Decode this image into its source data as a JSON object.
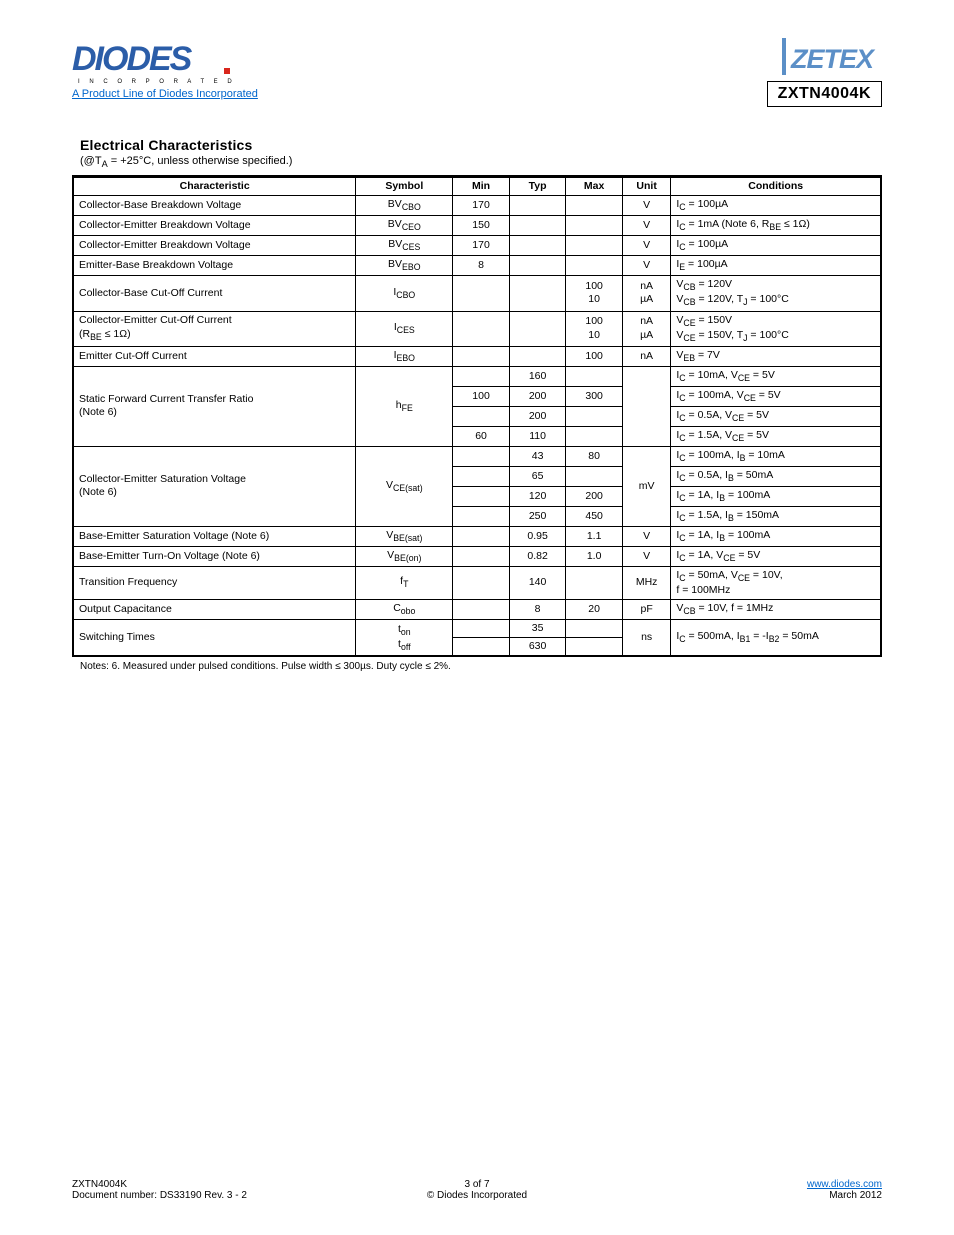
{
  "header": {
    "product_link": "A Product Line of Diodes Incorporated",
    "part_number": "ZXTN4004K"
  },
  "section": {
    "title": "Electrical Characteristics",
    "subtitle": "(@T<sub>A</sub> = +25°C, unless otherwise specified.)"
  },
  "table": {
    "headers": [
      "Characteristic",
      "Symbol",
      "Min",
      "Typ",
      "Max",
      "Unit",
      "Conditions"
    ],
    "rows": [
      {
        "p": "Collector-Base Breakdown Voltage",
        "s": "BV<sub>CBO</sub>",
        "min": "170",
        "typ": "",
        "max": "",
        "u": "V",
        "c": "I<sub>C</sub> = 100µA"
      },
      {
        "p": "Collector-Emitter Breakdown Voltage",
        "s": "BV<sub>CEO</sub>",
        "min": "150",
        "typ": "",
        "max": "",
        "u": "V",
        "c": "I<sub>C</sub> = 1mA (Note 6, R<sub>BE</sub> ≤ 1Ω)"
      },
      {
        "p": "Collector-Emitter Breakdown Voltage",
        "s": "BV<sub>CES</sub>",
        "min": "170",
        "typ": "",
        "max": "",
        "u": "V",
        "c": "I<sub>C</sub> = 100µA"
      },
      {
        "p": "Emitter-Base Breakdown Voltage",
        "s": "BV<sub>EBO</sub>",
        "min": "8",
        "typ": "",
        "max": "",
        "u": "V",
        "c": "I<sub>E</sub> = 100µA"
      },
      {
        "p": "Collector-Base Cut-Off Current",
        "s": "I<sub>CBO</sub>",
        "min": "",
        "typ": "",
        "max": "100<br>10",
        "u": "nA<br>µA",
        "c": "V<sub>CB</sub> = 120V<br>V<sub>CB</sub> = 120V, T<sub>J</sub> = 100°C"
      },
      {
        "p": "Collector-Emitter Cut-Off Current<br>(R<sub>BE</sub> ≤ 1Ω)",
        "s": "I<sub>CES</sub>",
        "min": "",
        "typ": "",
        "max": "100<br>10",
        "u": "nA<br>µA",
        "c": "V<sub>CE</sub> = 150V<br>V<sub>CE</sub> = 150V, T<sub>J</sub> = 100°C"
      },
      {
        "p": "Emitter Cut-Off Current",
        "s": "I<sub>EBO</sub>",
        "min": "",
        "typ": "",
        "max": "100",
        "u": "nA",
        "c": "V<sub>EB</sub> = 7V"
      },
      {
        "p": "Static Forward Current Transfer Ratio<br>(Note 6)",
        "s": "h<sub>FE</sub>",
        "rows": [
          {
            "min": "",
            "typ": "160",
            "max": "",
            "c": "I<sub>C</sub> = 10mA, V<sub>CE</sub> = 5V"
          },
          {
            "min": "100",
            "typ": "200",
            "max": "300",
            "c": "I<sub>C</sub> = 100mA, V<sub>CE</sub> = 5V"
          },
          {
            "min": "",
            "typ": "200",
            "max": "",
            "c": "I<sub>C</sub> = 0.5A, V<sub>CE</sub> = 5V"
          },
          {
            "min": "60",
            "typ": "110",
            "max": "",
            "c": "I<sub>C</sub> = 1.5A, V<sub>CE</sub> = 5V"
          }
        ],
        "u": ""
      },
      {
        "p": "Collector-Emitter Saturation Voltage<br>(Note 6)",
        "s": "V<sub>CE(sat)</sub>",
        "rows": [
          {
            "min": "",
            "typ": "43",
            "max": "80",
            "c": "I<sub>C</sub> = 100mA, I<sub>B</sub> = 10mA"
          },
          {
            "min": "",
            "typ": "65",
            "max": "",
            "c": "I<sub>C</sub> = 0.5A, I<sub>B</sub> = 50mA"
          },
          {
            "min": "",
            "typ": "120",
            "max": "200",
            "c": "I<sub>C</sub> = 1A, I<sub>B</sub> = 100mA"
          },
          {
            "min": "",
            "typ": "250",
            "max": "450",
            "c": "I<sub>C</sub> = 1.5A, I<sub>B</sub> = 150mA"
          }
        ],
        "u": "mV"
      },
      {
        "p": "Base-Emitter Saturation Voltage (Note 6)",
        "s": "V<sub>BE(sat)</sub>",
        "min": "",
        "typ": "0.95",
        "max": "1.1",
        "u": "V",
        "c": "I<sub>C</sub> = 1A, I<sub>B</sub> = 100mA"
      },
      {
        "p": "Base-Emitter Turn-On Voltage (Note 6)",
        "s": "V<sub>BE(on)</sub>",
        "min": "",
        "typ": "0.82",
        "max": "1.0",
        "u": "V",
        "c": "I<sub>C</sub> = 1A, V<sub>CE</sub> = 5V"
      },
      {
        "p": "Transition Frequency",
        "s": "f<sub>T</sub>",
        "min": "",
        "typ": "140",
        "max": "",
        "u": "MHz",
        "c": "I<sub>C</sub> = 50mA, V<sub>CE</sub> = 10V,<br>f = 100MHz"
      },
      {
        "p": "Output Capacitance",
        "s": "C<sub>obo</sub>",
        "min": "",
        "typ": "8",
        "max": "20",
        "u": "pF",
        "c": "V<sub>CB</sub> = 10V, f = 1MHz"
      },
      {
        "p": "Switching Times",
        "s": "t<sub>on</sub><br>t<sub>off</sub>",
        "rows": [
          {
            "min": "",
            "typ": "35",
            "max": "",
            "c": ""
          },
          {
            "min": "",
            "typ": "630",
            "max": "",
            "c": ""
          }
        ],
        "u": "ns",
        "c_merge": "I<sub>C</sub> = 500mA, I<sub>B1</sub> = -I<sub>B2</sub> = 50mA"
      }
    ]
  },
  "notes": "Notes:   6.  Measured under pulsed conditions. Pulse width ≤ 300µs. Duty cycle ≤ 2%.",
  "footer": {
    "left": "ZXTN4004K",
    "doc": "Document number: DS33190 Rev. 3 - 2",
    "center_line2": "© Diodes Incorporated",
    "pg": "3 of 7",
    "right1": "www.diodes.com",
    "right2": "March 2012"
  }
}
